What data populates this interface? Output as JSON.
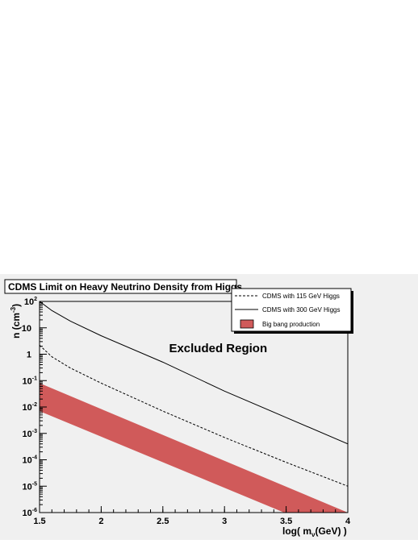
{
  "chart_data": {
    "type": "line",
    "title": "CDMS Limit on Heavy Neutrino Density from Higgs",
    "xlabel": "log( m",
    "xlabel_sub": "ν",
    "xlabel_tail": "(GeV) )",
    "ylabel": "n (cm",
    "ylabel_sup": "-3",
    "ylabel_tail": ")",
    "xlim": [
      1.5,
      4.0
    ],
    "ylim_log10": [
      -6,
      2
    ],
    "yscale": "log",
    "grid": false,
    "legend_position": "top-right",
    "x_ticks": [
      {
        "value": 1.5,
        "label": "1.5"
      },
      {
        "value": 2.0,
        "label": "2"
      },
      {
        "value": 2.5,
        "label": "2.5"
      },
      {
        "value": 3.0,
        "label": "3"
      },
      {
        "value": 3.5,
        "label": "3.5"
      },
      {
        "value": 4.0,
        "label": "4"
      }
    ],
    "y_ticks": [
      {
        "exp": 2,
        "base": "10",
        "sup": "2"
      },
      {
        "exp": 1,
        "base": "10",
        "sup": ""
      },
      {
        "exp": 0,
        "base": "1",
        "sup": ""
      },
      {
        "exp": -1,
        "base": "10",
        "sup": "-1"
      },
      {
        "exp": -2,
        "base": "10",
        "sup": "-2"
      },
      {
        "exp": -3,
        "base": "10",
        "sup": "-3"
      },
      {
        "exp": -4,
        "base": "10",
        "sup": "-4"
      },
      {
        "exp": -5,
        "base": "10",
        "sup": "-5"
      },
      {
        "exp": -6,
        "base": "10",
        "sup": "-6"
      }
    ],
    "series": [
      {
        "name": "CDMS with 115 GeV Higgs",
        "style": "dashed",
        "color": "#000000",
        "x": [
          1.5,
          1.6,
          1.75,
          2.0,
          2.5,
          3.0,
          3.5,
          4.0
        ],
        "y": [
          2.2,
          0.8,
          0.3,
          0.08,
          0.007,
          0.0007,
          8e-05,
          1e-05
        ]
      },
      {
        "name": "CDMS with 300 GeV Higgs",
        "style": "solid",
        "color": "#000000",
        "x": [
          1.5,
          1.6,
          1.75,
          2.0,
          2.5,
          3.0,
          3.5,
          4.0
        ],
        "y": [
          100,
          45,
          18,
          5,
          0.5,
          0.04,
          0.004,
          0.0004
        ]
      }
    ],
    "bands": [
      {
        "name": "Big bang production",
        "color": "#d05a5a",
        "x": [
          1.5,
          4.0
        ],
        "upper": [
          0.08,
          1e-06
        ],
        "lower": [
          0.007,
          1e-07
        ]
      }
    ],
    "annotations": [
      {
        "text": "Excluded Region",
        "x": 2.55,
        "y": 1.2
      }
    ]
  }
}
